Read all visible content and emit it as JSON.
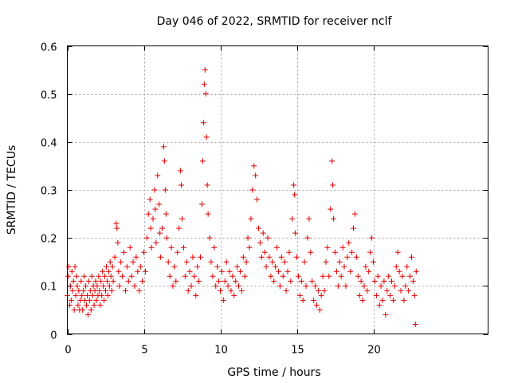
{
  "chart_data": {
    "type": "scatter",
    "title": "Day 046 of 2022, SRMTID for receiver nclf",
    "xlabel": "GPS time / hours",
    "ylabel": "SRMTID / TECUs",
    "xlim": [
      0,
      27.5
    ],
    "ylim": [
      0,
      0.6
    ],
    "xticks": [
      0,
      5,
      10,
      15,
      20
    ],
    "xtick_labels": [
      "0",
      "5",
      "10",
      "15",
      "20"
    ],
    "yticks": [
      0,
      0.1,
      0.2,
      0.3,
      0.4,
      0.5,
      0.6
    ],
    "ytick_labels": [
      "0",
      "0.1",
      "0.2",
      "0.3",
      "0.4",
      "0.5",
      "0.6"
    ],
    "grid": true,
    "marker": "+",
    "marker_color": "#e00000",
    "series": [
      {
        "name": "SRMTID",
        "points": [
          [
            0.0,
            0.08
          ],
          [
            0.05,
            0.12
          ],
          [
            0.1,
            0.14
          ],
          [
            0.15,
            0.06
          ],
          [
            0.2,
            0.1
          ],
          [
            0.25,
            0.07
          ],
          [
            0.3,
            0.13
          ],
          [
            0.35,
            0.09
          ],
          [
            0.4,
            0.11
          ],
          [
            0.45,
            0.05
          ],
          [
            0.5,
            0.14
          ],
          [
            0.55,
            0.08
          ],
          [
            0.6,
            0.12
          ],
          [
            0.65,
            0.1
          ],
          [
            0.7,
            0.06
          ],
          [
            0.75,
            0.09
          ],
          [
            0.8,
            0.05
          ],
          [
            0.85,
            0.07
          ],
          [
            0.9,
            0.11
          ],
          [
            0.95,
            0.08
          ],
          [
            1.0,
            0.05
          ],
          [
            1.05,
            0.09
          ],
          [
            1.1,
            0.12
          ],
          [
            1.15,
            0.07
          ],
          [
            1.2,
            0.1
          ],
          [
            1.25,
            0.06
          ],
          [
            1.3,
            0.08
          ],
          [
            1.35,
            0.04
          ],
          [
            1.4,
            0.11
          ],
          [
            1.45,
            0.07
          ],
          [
            1.5,
            0.09
          ],
          [
            1.55,
            0.05
          ],
          [
            1.6,
            0.12
          ],
          [
            1.65,
            0.08
          ],
          [
            1.7,
            0.1
          ],
          [
            1.75,
            0.06
          ],
          [
            1.8,
            0.09
          ],
          [
            1.85,
            0.11
          ],
          [
            1.9,
            0.07
          ],
          [
            1.95,
            0.1
          ],
          [
            2.0,
            0.08
          ],
          [
            2.05,
            0.12
          ],
          [
            2.1,
            0.09
          ],
          [
            2.15,
            0.06
          ],
          [
            2.2,
            0.11
          ],
          [
            2.25,
            0.08
          ],
          [
            2.3,
            0.13
          ],
          [
            2.35,
            0.1
          ],
          [
            2.4,
            0.07
          ],
          [
            2.45,
            0.12
          ],
          [
            2.5,
            0.09
          ],
          [
            2.55,
            0.14
          ],
          [
            2.6,
            0.11
          ],
          [
            2.65,
            0.08
          ],
          [
            2.7,
            0.13
          ],
          [
            2.75,
            0.1
          ],
          [
            2.8,
            0.15
          ],
          [
            2.85,
            0.12
          ],
          [
            2.9,
            0.09
          ],
          [
            2.95,
            0.14
          ],
          [
            3.0,
            0.11
          ],
          [
            3.1,
            0.16
          ],
          [
            3.2,
            0.23
          ],
          [
            3.25,
            0.22
          ],
          [
            3.3,
            0.19
          ],
          [
            3.35,
            0.13
          ],
          [
            3.4,
            0.1
          ],
          [
            3.5,
            0.15
          ],
          [
            3.6,
            0.12
          ],
          [
            3.7,
            0.17
          ],
          [
            3.8,
            0.09
          ],
          [
            3.9,
            0.14
          ],
          [
            4.0,
            0.11
          ],
          [
            4.1,
            0.18
          ],
          [
            4.2,
            0.12
          ],
          [
            4.3,
            0.15
          ],
          [
            4.4,
            0.1
          ],
          [
            4.5,
            0.16
          ],
          [
            4.6,
            0.13
          ],
          [
            4.7,
            0.09
          ],
          [
            4.8,
            0.14
          ],
          [
            4.9,
            0.11
          ],
          [
            5.0,
            0.17
          ],
          [
            5.1,
            0.13
          ],
          [
            5.2,
            0.2
          ],
          [
            5.3,
            0.25
          ],
          [
            5.4,
            0.28
          ],
          [
            5.45,
            0.22
          ],
          [
            5.5,
            0.18
          ],
          [
            5.6,
            0.24
          ],
          [
            5.7,
            0.3
          ],
          [
            5.75,
            0.26
          ],
          [
            5.8,
            0.19
          ],
          [
            5.9,
            0.33
          ],
          [
            6.0,
            0.27
          ],
          [
            6.05,
            0.21
          ],
          [
            6.1,
            0.16
          ],
          [
            6.2,
            0.22
          ],
          [
            6.3,
            0.39
          ],
          [
            6.35,
            0.36
          ],
          [
            6.4,
            0.3
          ],
          [
            6.45,
            0.25
          ],
          [
            6.5,
            0.2
          ],
          [
            6.6,
            0.15
          ],
          [
            6.7,
            0.12
          ],
          [
            6.8,
            0.18
          ],
          [
            6.9,
            0.1
          ],
          [
            7.0,
            0.14
          ],
          [
            7.1,
            0.11
          ],
          [
            7.2,
            0.17
          ],
          [
            7.3,
            0.22
          ],
          [
            7.4,
            0.34
          ],
          [
            7.45,
            0.31
          ],
          [
            7.5,
            0.24
          ],
          [
            7.6,
            0.18
          ],
          [
            7.7,
            0.12
          ],
          [
            7.8,
            0.15
          ],
          [
            7.9,
            0.09
          ],
          [
            8.0,
            0.13
          ],
          [
            8.1,
            0.1
          ],
          [
            8.2,
            0.16
          ],
          [
            8.3,
            0.12
          ],
          [
            8.4,
            0.08
          ],
          [
            8.5,
            0.14
          ],
          [
            8.6,
            0.11
          ],
          [
            8.7,
            0.16
          ],
          [
            8.8,
            0.27
          ],
          [
            8.85,
            0.36
          ],
          [
            8.9,
            0.44
          ],
          [
            8.95,
            0.52
          ],
          [
            9.0,
            0.55
          ],
          [
            9.05,
            0.5
          ],
          [
            9.1,
            0.41
          ],
          [
            9.15,
            0.31
          ],
          [
            9.2,
            0.25
          ],
          [
            9.3,
            0.2
          ],
          [
            9.4,
            0.15
          ],
          [
            9.5,
            0.12
          ],
          [
            9.6,
            0.18
          ],
          [
            9.7,
            0.1
          ],
          [
            9.8,
            0.14
          ],
          [
            9.9,
            0.11
          ],
          [
            10.0,
            0.09
          ],
          [
            10.1,
            0.13
          ],
          [
            10.2,
            0.07
          ],
          [
            10.3,
            0.11
          ],
          [
            10.4,
            0.15
          ],
          [
            10.5,
            0.1
          ],
          [
            10.6,
            0.13
          ],
          [
            10.7,
            0.09
          ],
          [
            10.8,
            0.12
          ],
          [
            10.9,
            0.08
          ],
          [
            11.0,
            0.11
          ],
          [
            11.1,
            0.14
          ],
          [
            11.2,
            0.1
          ],
          [
            11.3,
            0.13
          ],
          [
            11.4,
            0.09
          ],
          [
            11.5,
            0.16
          ],
          [
            11.6,
            0.12
          ],
          [
            11.7,
            0.15
          ],
          [
            11.8,
            0.2
          ],
          [
            11.9,
            0.18
          ],
          [
            12.0,
            0.24
          ],
          [
            12.1,
            0.3
          ],
          [
            12.2,
            0.35
          ],
          [
            12.3,
            0.33
          ],
          [
            12.4,
            0.28
          ],
          [
            12.5,
            0.22
          ],
          [
            12.6,
            0.19
          ],
          [
            12.7,
            0.16
          ],
          [
            12.8,
            0.21
          ],
          [
            12.9,
            0.17
          ],
          [
            13.0,
            0.14
          ],
          [
            13.1,
            0.2
          ],
          [
            13.2,
            0.16
          ],
          [
            13.3,
            0.12
          ],
          [
            13.4,
            0.15
          ],
          [
            13.5,
            0.11
          ],
          [
            13.6,
            0.14
          ],
          [
            13.7,
            0.18
          ],
          [
            13.8,
            0.13
          ],
          [
            13.9,
            0.1
          ],
          [
            14.0,
            0.16
          ],
          [
            14.1,
            0.12
          ],
          [
            14.2,
            0.15
          ],
          [
            14.3,
            0.09
          ],
          [
            14.4,
            0.13
          ],
          [
            14.5,
            0.17
          ],
          [
            14.6,
            0.11
          ],
          [
            14.7,
            0.24
          ],
          [
            14.8,
            0.31
          ],
          [
            14.85,
            0.29
          ],
          [
            14.9,
            0.21
          ],
          [
            15.0,
            0.16
          ],
          [
            15.1,
            0.12
          ],
          [
            15.2,
            0.08
          ],
          [
            15.3,
            0.11
          ],
          [
            15.4,
            0.07
          ],
          [
            15.5,
            0.15
          ],
          [
            15.6,
            0.1
          ],
          [
            15.7,
            0.2
          ],
          [
            15.8,
            0.24
          ],
          [
            15.9,
            0.17
          ],
          [
            16.0,
            0.11
          ],
          [
            16.1,
            0.07
          ],
          [
            16.2,
            0.1
          ],
          [
            16.3,
            0.06
          ],
          [
            16.4,
            0.09
          ],
          [
            16.5,
            0.05
          ],
          [
            16.6,
            0.08
          ],
          [
            16.7,
            0.12
          ],
          [
            16.8,
            0.09
          ],
          [
            16.9,
            0.15
          ],
          [
            17.0,
            0.18
          ],
          [
            17.1,
            0.12
          ],
          [
            17.2,
            0.26
          ],
          [
            17.3,
            0.36
          ],
          [
            17.35,
            0.31
          ],
          [
            17.4,
            0.24
          ],
          [
            17.5,
            0.17
          ],
          [
            17.6,
            0.13
          ],
          [
            17.7,
            0.1
          ],
          [
            17.8,
            0.15
          ],
          [
            17.9,
            0.12
          ],
          [
            18.0,
            0.18
          ],
          [
            18.1,
            0.14
          ],
          [
            18.2,
            0.1
          ],
          [
            18.3,
            0.16
          ],
          [
            18.4,
            0.19
          ],
          [
            18.5,
            0.13
          ],
          [
            18.6,
            0.17
          ],
          [
            18.7,
            0.22
          ],
          [
            18.8,
            0.25
          ],
          [
            18.9,
            0.16
          ],
          [
            19.0,
            0.12
          ],
          [
            19.1,
            0.08
          ],
          [
            19.2,
            0.11
          ],
          [
            19.3,
            0.07
          ],
          [
            19.4,
            0.1
          ],
          [
            19.5,
            0.14
          ],
          [
            19.6,
            0.09
          ],
          [
            19.7,
            0.13
          ],
          [
            19.8,
            0.17
          ],
          [
            19.9,
            0.2
          ],
          [
            20.0,
            0.15
          ],
          [
            20.1,
            0.11
          ],
          [
            20.2,
            0.08
          ],
          [
            20.3,
            0.12
          ],
          [
            20.4,
            0.06
          ],
          [
            20.5,
            0.1
          ],
          [
            20.6,
            0.07
          ],
          [
            20.7,
            0.11
          ],
          [
            20.8,
            0.04
          ],
          [
            20.9,
            0.09
          ],
          [
            21.0,
            0.12
          ],
          [
            21.1,
            0.08
          ],
          [
            21.2,
            0.11
          ],
          [
            21.3,
            0.07
          ],
          [
            21.4,
            0.1
          ],
          [
            21.5,
            0.14
          ],
          [
            21.6,
            0.17
          ],
          [
            21.7,
            0.13
          ],
          [
            21.8,
            0.09
          ],
          [
            21.9,
            0.12
          ],
          [
            22.0,
            0.07
          ],
          [
            22.1,
            0.1
          ],
          [
            22.2,
            0.14
          ],
          [
            22.3,
            0.09
          ],
          [
            22.4,
            0.12
          ],
          [
            22.5,
            0.16
          ],
          [
            22.6,
            0.11
          ],
          [
            22.7,
            0.08
          ],
          [
            22.75,
            0.02
          ],
          [
            22.8,
            0.13
          ]
        ]
      }
    ]
  }
}
